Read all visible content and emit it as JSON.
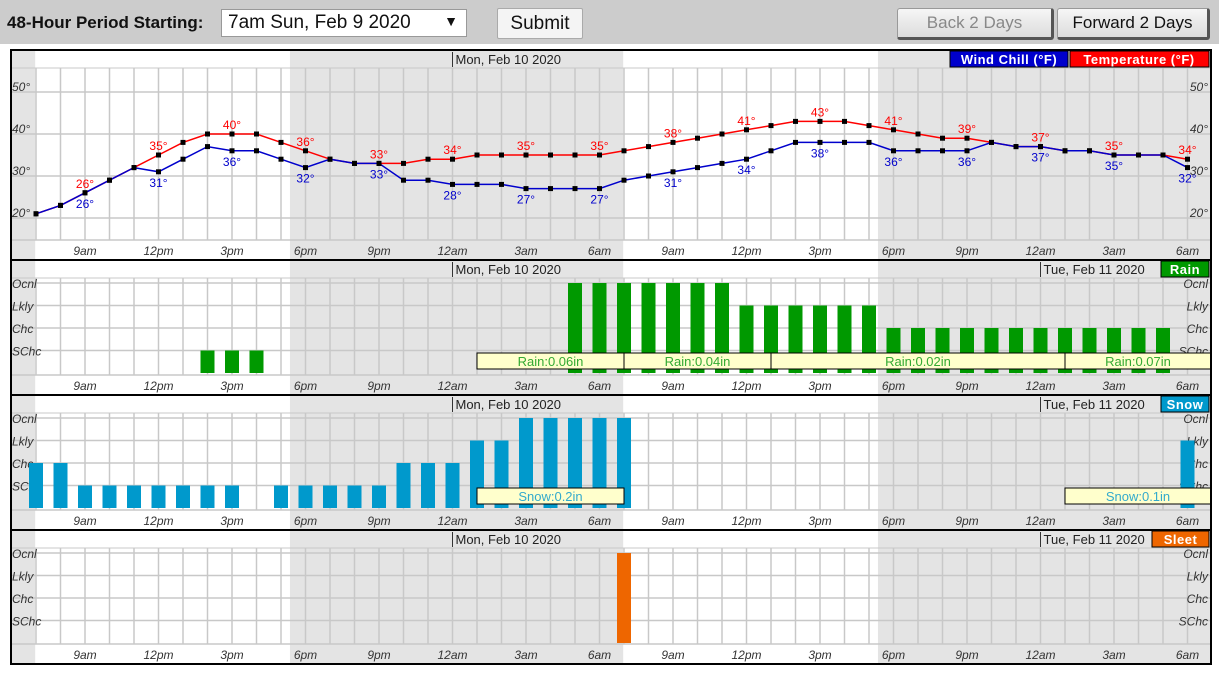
{
  "controls": {
    "period_label": "48-Hour Period Starting:",
    "period_value": "7am Sun, Feb 9 2020",
    "submit_label": "Submit",
    "back_label": "Back 2 Days",
    "forward_label": "Forward 2 Days",
    "back_disabled": true
  },
  "colors": {
    "temperature": "#ff0000",
    "wind_chill": "#0000cc",
    "rain": "#009900",
    "snow": "#0099cc",
    "sleet": "#ee6600",
    "night_shade": "#e4e4e4",
    "amount_box": "#ffffcc"
  },
  "chart_data": {
    "type": "line",
    "hours": [
      "2020-02-09T07:00",
      "2020-02-09T08:00",
      "2020-02-09T09:00",
      "2020-02-09T10:00",
      "2020-02-09T11:00",
      "2020-02-09T12:00",
      "2020-02-09T13:00",
      "2020-02-09T14:00",
      "2020-02-09T15:00",
      "2020-02-09T16:00",
      "2020-02-09T17:00",
      "2020-02-09T18:00",
      "2020-02-09T19:00",
      "2020-02-09T20:00",
      "2020-02-09T21:00",
      "2020-02-09T22:00",
      "2020-02-09T23:00",
      "2020-02-10T00:00",
      "2020-02-10T01:00",
      "2020-02-10T02:00",
      "2020-02-10T03:00",
      "2020-02-10T04:00",
      "2020-02-10T05:00",
      "2020-02-10T06:00",
      "2020-02-10T07:00",
      "2020-02-10T08:00",
      "2020-02-10T09:00",
      "2020-02-10T10:00",
      "2020-02-10T11:00",
      "2020-02-10T12:00",
      "2020-02-10T13:00",
      "2020-02-10T14:00",
      "2020-02-10T15:00",
      "2020-02-10T16:00",
      "2020-02-10T17:00",
      "2020-02-10T18:00",
      "2020-02-10T19:00",
      "2020-02-10T20:00",
      "2020-02-10T21:00",
      "2020-02-10T22:00",
      "2020-02-10T23:00",
      "2020-02-11T00:00",
      "2020-02-11T01:00",
      "2020-02-11T02:00",
      "2020-02-11T03:00",
      "2020-02-11T04:00",
      "2020-02-11T05:00",
      "2020-02-11T06:00"
    ],
    "x_tick_labels": [
      "9am",
      "12pm",
      "3pm",
      "6pm",
      "9pm",
      "12am",
      "3am",
      "6am",
      "9am",
      "12pm",
      "3pm",
      "6pm",
      "9pm",
      "12am",
      "3am",
      "6am"
    ],
    "day_labels": [
      {
        "text": "Mon, Feb 10 2020",
        "at": "2020-02-10T00:00"
      },
      {
        "text": "Tue, Feb 11 2020",
        "at": "2020-02-11T00:00"
      }
    ],
    "night_periods": [
      [
        "2020-02-09T00:00",
        "2020-02-09T06:58"
      ],
      [
        "2020-02-09T17:22",
        "2020-02-10T06:58"
      ],
      [
        "2020-02-10T17:22",
        "2020-02-11T06:58"
      ]
    ],
    "temperature_panel": {
      "y_tick_labels": [
        "20°",
        "30°",
        "40°",
        "50°"
      ],
      "y_ticks": [
        20,
        30,
        40,
        50
      ],
      "ylim": [
        10,
        60
      ],
      "grid": true,
      "legend_position": "top-right",
      "series": [
        {
          "name": "Wind Chill (°F)",
          "color_key": "wind_chill",
          "values": [
            21,
            23,
            26,
            29,
            32,
            31,
            34,
            37,
            36,
            36,
            34,
            32,
            34,
            33,
            33,
            29,
            29,
            28,
            28,
            28,
            27,
            27,
            27,
            27,
            29,
            30,
            31,
            32,
            33,
            34,
            36,
            38,
            38,
            38,
            38,
            36,
            36,
            36,
            36,
            38,
            37,
            37,
            36,
            36,
            35,
            35,
            35,
            32
          ]
        },
        {
          "name": "Temperature (°F)",
          "color_key": "temperature",
          "values": [
            21,
            23,
            26,
            29,
            32,
            35,
            38,
            40,
            40,
            40,
            38,
            36,
            34,
            33,
            33,
            33,
            34,
            34,
            35,
            35,
            35,
            35,
            35,
            35,
            36,
            37,
            38,
            39,
            40,
            41,
            42,
            43,
            43,
            43,
            42,
            41,
            40,
            39,
            39,
            38,
            37,
            37,
            36,
            36,
            35,
            35,
            35,
            34
          ]
        }
      ]
    },
    "precip_levels": [
      "SChc",
      "Chc",
      "Lkly",
      "Ocnl"
    ],
    "precip_panels": [
      {
        "name": "Rain",
        "color_key": "rain",
        "show_mon_label": true,
        "show_tue_label": true,
        "levels": [
          0,
          0,
          0,
          0,
          0,
          0,
          0,
          1,
          1,
          1,
          0,
          0,
          0,
          0,
          0,
          0,
          0,
          0,
          0,
          0,
          0,
          0,
          4,
          4,
          4,
          4,
          4,
          4,
          4,
          3,
          3,
          3,
          3,
          3,
          3,
          2,
          2,
          2,
          2,
          2,
          2,
          2,
          2,
          2,
          2,
          2,
          2,
          0
        ],
        "amounts": [
          {
            "label": "Rain:0.06in",
            "from": "2020-02-10T01:00",
            "to": "2020-02-10T07:00"
          },
          {
            "label": "Rain:0.04in",
            "from": "2020-02-10T07:00",
            "to": "2020-02-10T13:00"
          },
          {
            "label": "Rain:0.02in",
            "from": "2020-02-10T13:00",
            "to": "2020-02-11T01:00"
          },
          {
            "label": "Rain:0.07in",
            "from": "2020-02-11T01:00",
            "to": "2020-02-11T07:00"
          }
        ]
      },
      {
        "name": "Snow",
        "color_key": "snow",
        "show_mon_label": true,
        "show_tue_label": true,
        "levels": [
          2,
          2,
          1,
          1,
          1,
          1,
          1,
          1,
          1,
          0,
          1,
          1,
          1,
          1,
          1,
          2,
          2,
          2,
          3,
          3,
          4,
          4,
          4,
          4,
          4,
          0,
          0,
          0,
          0,
          0,
          0,
          0,
          0,
          0,
          0,
          0,
          0,
          0,
          0,
          0,
          0,
          0,
          0,
          0,
          0,
          0,
          0,
          3
        ],
        "amounts": [
          {
            "label": "Snow:0.2in",
            "from": "2020-02-10T01:00",
            "to": "2020-02-10T07:00"
          },
          {
            "label": "Snow:0.1in",
            "from": "2020-02-11T01:00",
            "to": "2020-02-11T07:00"
          }
        ]
      },
      {
        "name": "Sleet",
        "color_key": "sleet",
        "show_mon_label": true,
        "show_tue_label": true,
        "levels": [
          0,
          0,
          0,
          0,
          0,
          0,
          0,
          0,
          0,
          0,
          0,
          0,
          0,
          0,
          0,
          0,
          0,
          0,
          0,
          0,
          0,
          0,
          0,
          0,
          4,
          0,
          0,
          0,
          0,
          0,
          0,
          0,
          0,
          0,
          0,
          0,
          0,
          0,
          0,
          0,
          0,
          0,
          0,
          0,
          0,
          0,
          0,
          0
        ],
        "amounts": []
      }
    ]
  }
}
